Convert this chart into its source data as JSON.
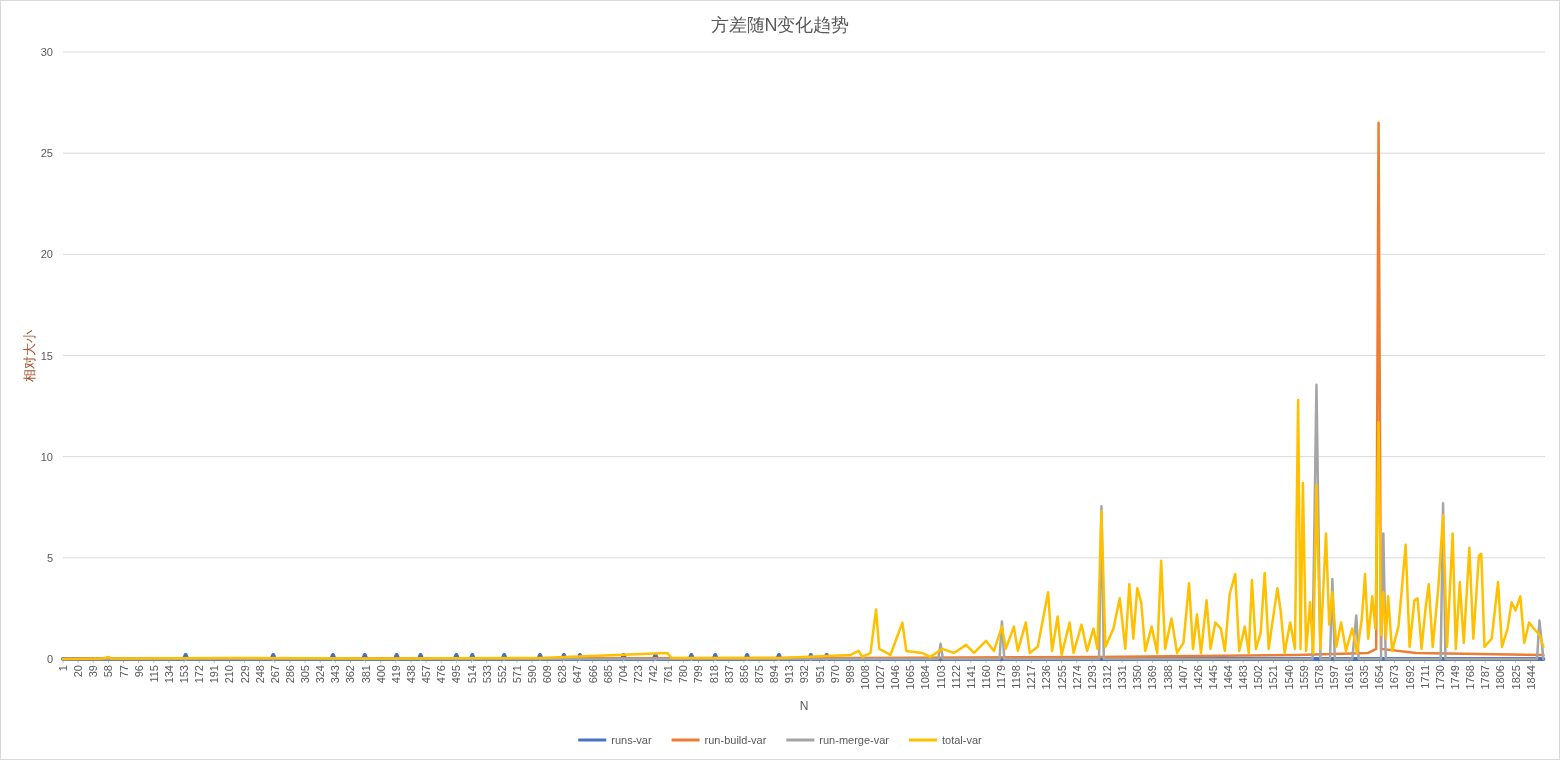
{
  "chart_data": {
    "type": "line",
    "title": "方差随N变化趋势",
    "xlabel": "N",
    "ylabel": "相对大小",
    "xlim": [
      1,
      1862
    ],
    "ylim": [
      0,
      30
    ],
    "yticks": [
      0,
      5,
      10,
      15,
      20,
      25,
      30
    ],
    "grid": "y",
    "legend": "bottom",
    "xticks": [
      1,
      20,
      39,
      58,
      77,
      96,
      115,
      134,
      153,
      172,
      191,
      210,
      229,
      248,
      267,
      286,
      305,
      324,
      343,
      362,
      381,
      400,
      419,
      438,
      457,
      476,
      495,
      514,
      533,
      552,
      571,
      590,
      609,
      628,
      647,
      666,
      685,
      704,
      723,
      742,
      761,
      780,
      799,
      818,
      837,
      856,
      875,
      894,
      913,
      932,
      951,
      970,
      989,
      1008,
      1027,
      1046,
      1065,
      1084,
      1103,
      1122,
      1141,
      1160,
      1179,
      1198,
      1217,
      1236,
      1255,
      1274,
      1293,
      1312,
      1331,
      1350,
      1369,
      1388,
      1407,
      1426,
      1445,
      1464,
      1483,
      1502,
      1521,
      1540,
      1559,
      1578,
      1597,
      1616,
      1635,
      1654,
      1673,
      1692,
      1711,
      1730,
      1749,
      1768,
      1787,
      1806,
      1825,
      1844
    ],
    "series": [
      {
        "name": "runs-var",
        "color": "#4472c4",
        "x": [
          1,
          153,
          155,
          157,
          263,
          265,
          267,
          338,
          340,
          342,
          378,
          380,
          382,
          418,
          420,
          422,
          448,
          450,
          452,
          493,
          495,
          497,
          513,
          515,
          517,
          553,
          555,
          557,
          598,
          600,
          602,
          628,
          630,
          632,
          648,
          650,
          652,
          703,
          705,
          707,
          743,
          745,
          747,
          788,
          790,
          792,
          818,
          820,
          822,
          858,
          860,
          862,
          898,
          900,
          902,
          938,
          940,
          942,
          958,
          960,
          962,
          1860
        ],
        "values": [
          0,
          0,
          0.2,
          0,
          0,
          0.2,
          0,
          0,
          0.2,
          0,
          0,
          0.2,
          0,
          0,
          0.2,
          0,
          0,
          0.2,
          0,
          0,
          0.2,
          0,
          0,
          0.2,
          0,
          0,
          0.2,
          0,
          0,
          0.2,
          0,
          0,
          0.2,
          0,
          0,
          0.2,
          0,
          0,
          0.2,
          0,
          0,
          0.2,
          0,
          0,
          0.2,
          0,
          0,
          0.2,
          0,
          0,
          0.2,
          0,
          0,
          0.2,
          0,
          0,
          0.2,
          0,
          0,
          0.2,
          0,
          0
        ]
      },
      {
        "name": "run-build-var",
        "color": "#ed7d31",
        "x": [
          1,
          1000,
          1300,
          1550,
          1640,
          1650,
          1653,
          1656,
          1700,
          1860
        ],
        "values": [
          0,
          0.05,
          0.1,
          0.2,
          0.3,
          0.5,
          26.5,
          0.5,
          0.3,
          0.2
        ]
      },
      {
        "name": "run-merge-var",
        "color": "#a5a5a5",
        "x": [
          1,
          1100,
          1103,
          1106,
          1177,
          1180,
          1183,
          1302,
          1305,
          1308,
          1570,
          1575,
          1580,
          1592,
          1595,
          1598,
          1620,
          1625,
          1628,
          1656,
          1659,
          1662,
          1731,
          1734,
          1737,
          1852,
          1855,
          1860
        ],
        "values": [
          0,
          0,
          0.75,
          0,
          0,
          1.85,
          0,
          0,
          7.55,
          0,
          0,
          13.55,
          0,
          0,
          3.95,
          0,
          0,
          2.15,
          0,
          0,
          6.2,
          0,
          0,
          7.7,
          0,
          0,
          1.9,
          0
        ]
      },
      {
        "name": "total-var",
        "color": "#ffc000",
        "x": [
          1,
          50,
          58,
          62,
          200,
          400,
          600,
          760,
          765,
          900,
          990,
          1000,
          1005,
          1015,
          1022,
          1026,
          1040,
          1055,
          1060,
          1080,
          1090,
          1105,
          1120,
          1135,
          1145,
          1160,
          1170,
          1180,
          1185,
          1195,
          1200,
          1210,
          1215,
          1225,
          1238,
          1243,
          1250,
          1255,
          1265,
          1270,
          1280,
          1287,
          1295,
          1300,
          1305,
          1310,
          1320,
          1328,
          1335,
          1340,
          1345,
          1350,
          1355,
          1360,
          1368,
          1375,
          1380,
          1385,
          1393,
          1400,
          1408,
          1415,
          1420,
          1425,
          1430,
          1437,
          1442,
          1448,
          1455,
          1460,
          1466,
          1473,
          1478,
          1485,
          1490,
          1494,
          1499,
          1505,
          1510,
          1515,
          1520,
          1526,
          1530,
          1535,
          1542,
          1548,
          1552,
          1555,
          1558,
          1562,
          1567,
          1571,
          1575,
          1580,
          1587,
          1591,
          1595,
          1600,
          1606,
          1612,
          1620,
          1626,
          1632,
          1636,
          1640,
          1645,
          1649,
          1653,
          1656,
          1659,
          1662,
          1665,
          1670,
          1678,
          1683,
          1687,
          1692,
          1698,
          1702,
          1707,
          1712,
          1716,
          1721,
          1728,
          1734,
          1739,
          1746,
          1750,
          1755,
          1760,
          1767,
          1772,
          1779,
          1782,
          1786,
          1795,
          1803,
          1808,
          1815,
          1820,
          1825,
          1831,
          1836,
          1842,
          1848,
          1855,
          1860
        ],
        "values": [
          0,
          0.02,
          0.1,
          0.02,
          0.05,
          0.03,
          0.05,
          0.3,
          0.05,
          0.05,
          0.2,
          0.4,
          0.1,
          0.3,
          2.45,
          0.5,
          0.2,
          1.8,
          0.4,
          0.3,
          0.1,
          0.5,
          0.3,
          0.7,
          0.3,
          0.9,
          0.4,
          1.6,
          0.5,
          1.6,
          0.4,
          1.8,
          0.3,
          0.6,
          3.3,
          0.4,
          2.1,
          0.2,
          1.8,
          0.3,
          1.7,
          0.4,
          1.5,
          0.5,
          7.3,
          0.6,
          1.5,
          3.0,
          0.5,
          3.7,
          1.0,
          3.5,
          2.8,
          0.4,
          1.6,
          0.3,
          4.85,
          0.5,
          2.0,
          0.3,
          0.8,
          3.75,
          0.5,
          2.2,
          0.3,
          2.9,
          0.5,
          1.8,
          1.5,
          0.4,
          3.2,
          4.2,
          0.4,
          1.6,
          0.3,
          3.9,
          0.5,
          1.3,
          4.25,
          0.5,
          1.9,
          3.5,
          2.4,
          0.3,
          1.8,
          0.5,
          12.8,
          0.5,
          8.7,
          0.4,
          2.8,
          0.3,
          8.6,
          0.5,
          6.2,
          1.7,
          3.3,
          0.6,
          1.8,
          0.4,
          1.5,
          0.3,
          2.0,
          4.2,
          1.0,
          3.1,
          1.5,
          11.7,
          1.2,
          3.3,
          1.0,
          3.1,
          0.4,
          1.6,
          3.8,
          5.65,
          0.6,
          2.9,
          3.0,
          0.5,
          2.5,
          3.7,
          0.6,
          3.5,
          7.1,
          0.6,
          6.2,
          0.5,
          3.8,
          0.8,
          5.5,
          1.0,
          5.1,
          5.2,
          0.6,
          1.0,
          3.8,
          0.6,
          1.5,
          2.8,
          2.4,
          3.1,
          0.8,
          1.8,
          1.5,
          1.2,
          0.6
        ]
      }
    ]
  }
}
